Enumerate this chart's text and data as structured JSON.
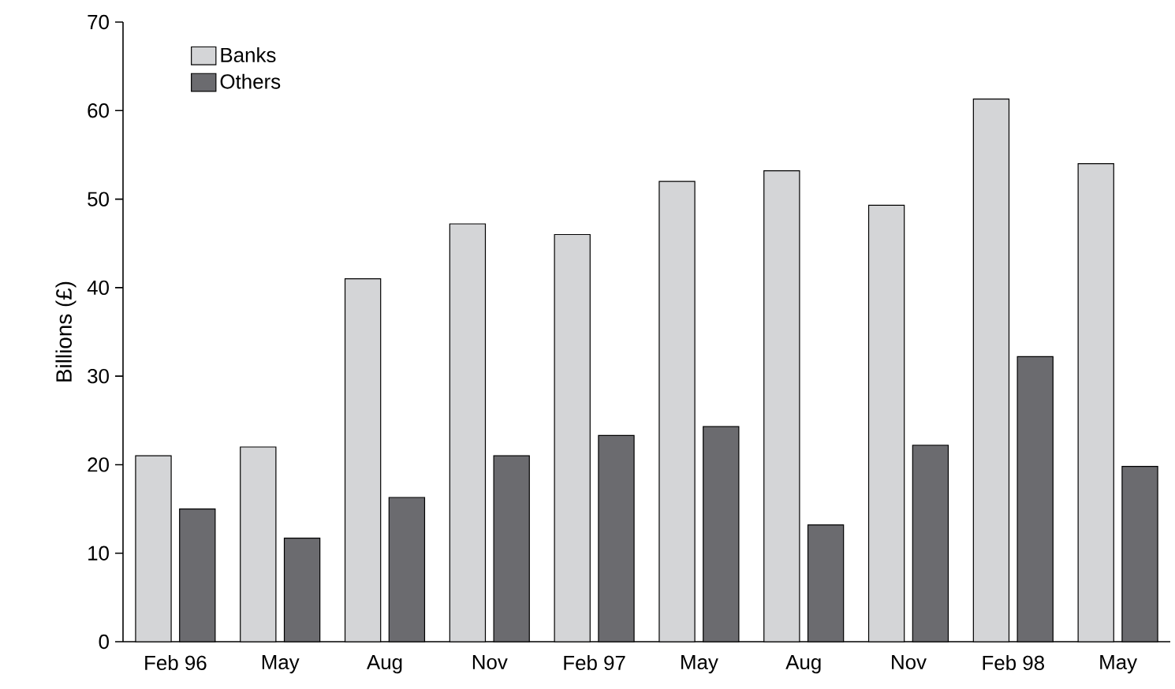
{
  "chart_data": {
    "type": "bar",
    "ylabel": "Billions (£)",
    "categories": [
      "Feb 96",
      "May",
      "Aug",
      "Nov",
      "Feb 97",
      "May",
      "Aug",
      "Nov",
      "Feb 98",
      "May"
    ],
    "series": [
      {
        "name": "Banks",
        "color": "#d4d5d7",
        "values": [
          21,
          22,
          41,
          47.2,
          46,
          52,
          53.2,
          49.3,
          61.3,
          54
        ]
      },
      {
        "name": "Others",
        "color": "#6b6b6f",
        "values": [
          15,
          11.7,
          16.3,
          21,
          23.3,
          24.3,
          13.2,
          22.2,
          32.2,
          19.8
        ]
      }
    ],
    "ylim": [
      0,
      70
    ],
    "yticks": [
      0,
      10,
      20,
      30,
      40,
      50,
      60,
      70
    ],
    "grid": false,
    "legend": "top left"
  }
}
